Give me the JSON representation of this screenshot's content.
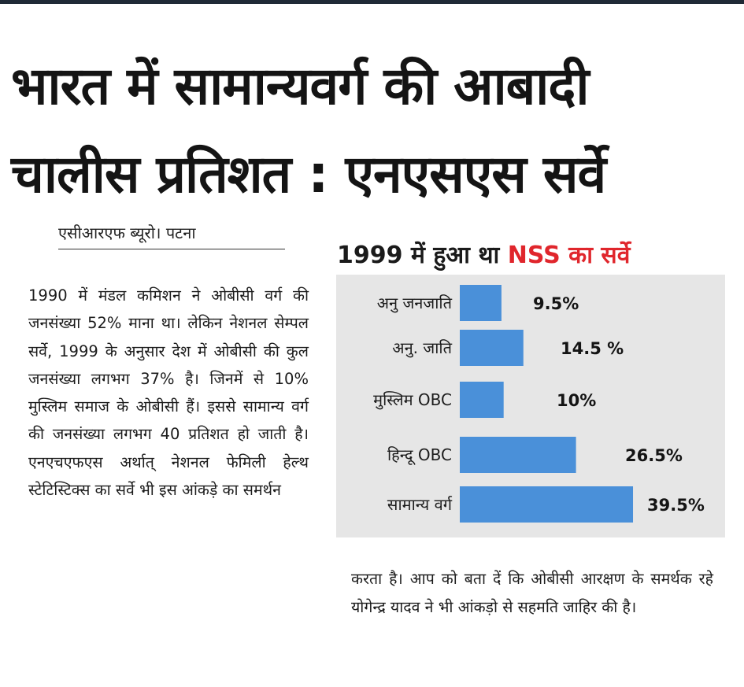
{
  "headline": {
    "line1": "भारत में सामान्यवर्ग की आबादी",
    "line2": "चालीस प्रतिशत : एनएसएस सर्वे"
  },
  "byline": "एसीआरएफ ब्यूरो। पटना",
  "story_left": "1990 में मंडल कमिशन ने ओबीसी वर्ग की जनसंख्या 52% माना था। लेकिन नेशनल सेम्पल सर्वे, 1999 के अनुसार देश में ओबीसी की कुल जनसंख्या लगभग 37% है। जिनमें से 10% मुस्लिम समाज के ओबीसी हैं। इससे सामान्य वर्ग की जनसंख्या लगभग 40 प्रतिशत हो जाती है। एनएचएफएस अर्थात् नेशनल फेमिली हेल्थ स्टेटिस्टिक्स का सर्वे भी इस आंकड़े का समर्थन",
  "story_right": "करता है। आप को बता दें कि ओबीसी आरक्षण के समर्थक रहे योगेन्द्र यादव ने भी आंकड़ो से सहमति जाहिर की है।",
  "chart_title": {
    "part1": "1999 में हुआ था ",
    "part2": "NSS का सर्वे"
  },
  "colors": {
    "accent_red": "#e0262c",
    "bar_blue": "#4a90d9",
    "panel_gray": "#e6e6e6"
  },
  "chart_data": {
    "type": "bar",
    "orientation": "horizontal",
    "categories": [
      "अनु जनजाति",
      "अनु. जाति",
      "मुस्लिम OBC",
      "हिन्दू OBC",
      "सामान्य वर्ग"
    ],
    "values": [
      9.5,
      14.5,
      10,
      26.5,
      39.5
    ],
    "value_labels": [
      "9.5%",
      "14.5 %",
      "10%",
      "26.5%",
      "39.5%"
    ],
    "unit": "%",
    "grid": false,
    "legend": "none"
  }
}
